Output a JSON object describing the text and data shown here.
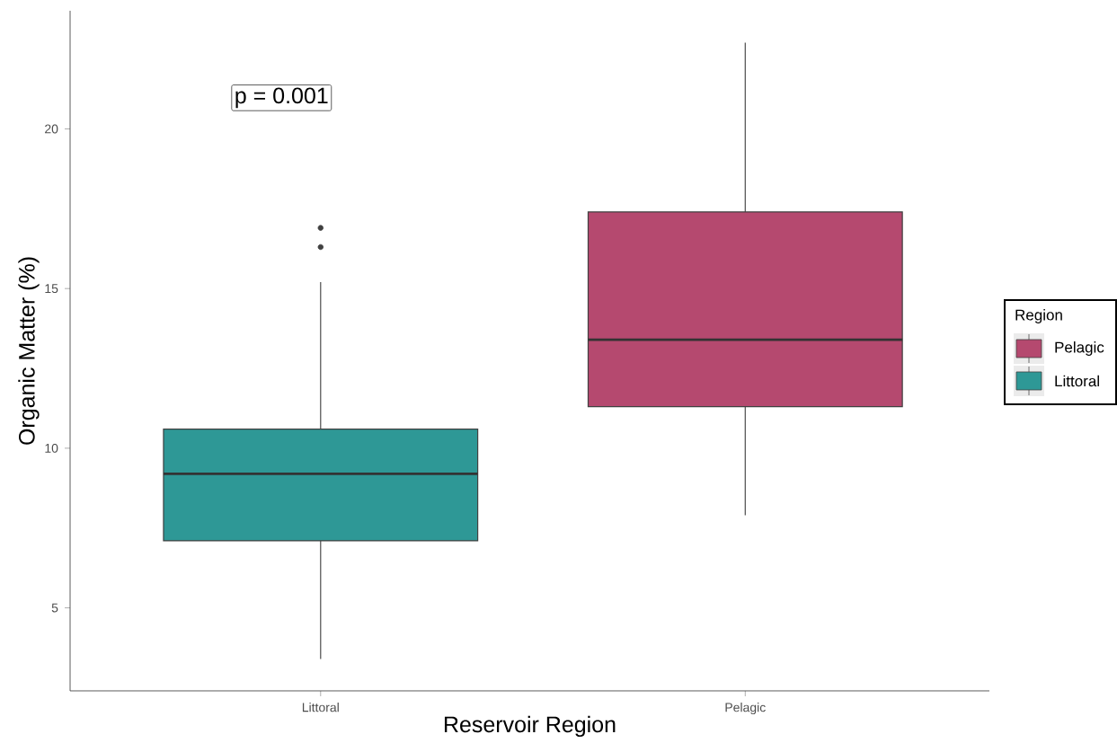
{
  "chart_data": {
    "type": "box",
    "xlabel": "Reservoir Region",
    "ylabel": "Organic Matter (%)",
    "categories": [
      "Littoral",
      "Pelagic"
    ],
    "series": [
      {
        "name": "Pelagic",
        "color": "#b5496f",
        "boxes": [
          null,
          {
            "low": 7.9,
            "q1": 11.3,
            "median": 13.4,
            "q3": 17.4,
            "high": 22.7
          }
        ]
      },
      {
        "name": "Littoral",
        "color": "#2e9896",
        "boxes": [
          {
            "low": 3.4,
            "q1": 7.1,
            "median": 9.2,
            "q3": 10.6,
            "high": 15.2,
            "outliers": [
              16.9,
              16.3
            ]
          },
          null
        ]
      }
    ],
    "ylim": [
      2.4,
      23.7
    ],
    "yticks": [
      5,
      10,
      15,
      20
    ],
    "grid": false,
    "legend": "right",
    "legend_title": "Region",
    "annotations": [
      "p = 0.001"
    ]
  }
}
